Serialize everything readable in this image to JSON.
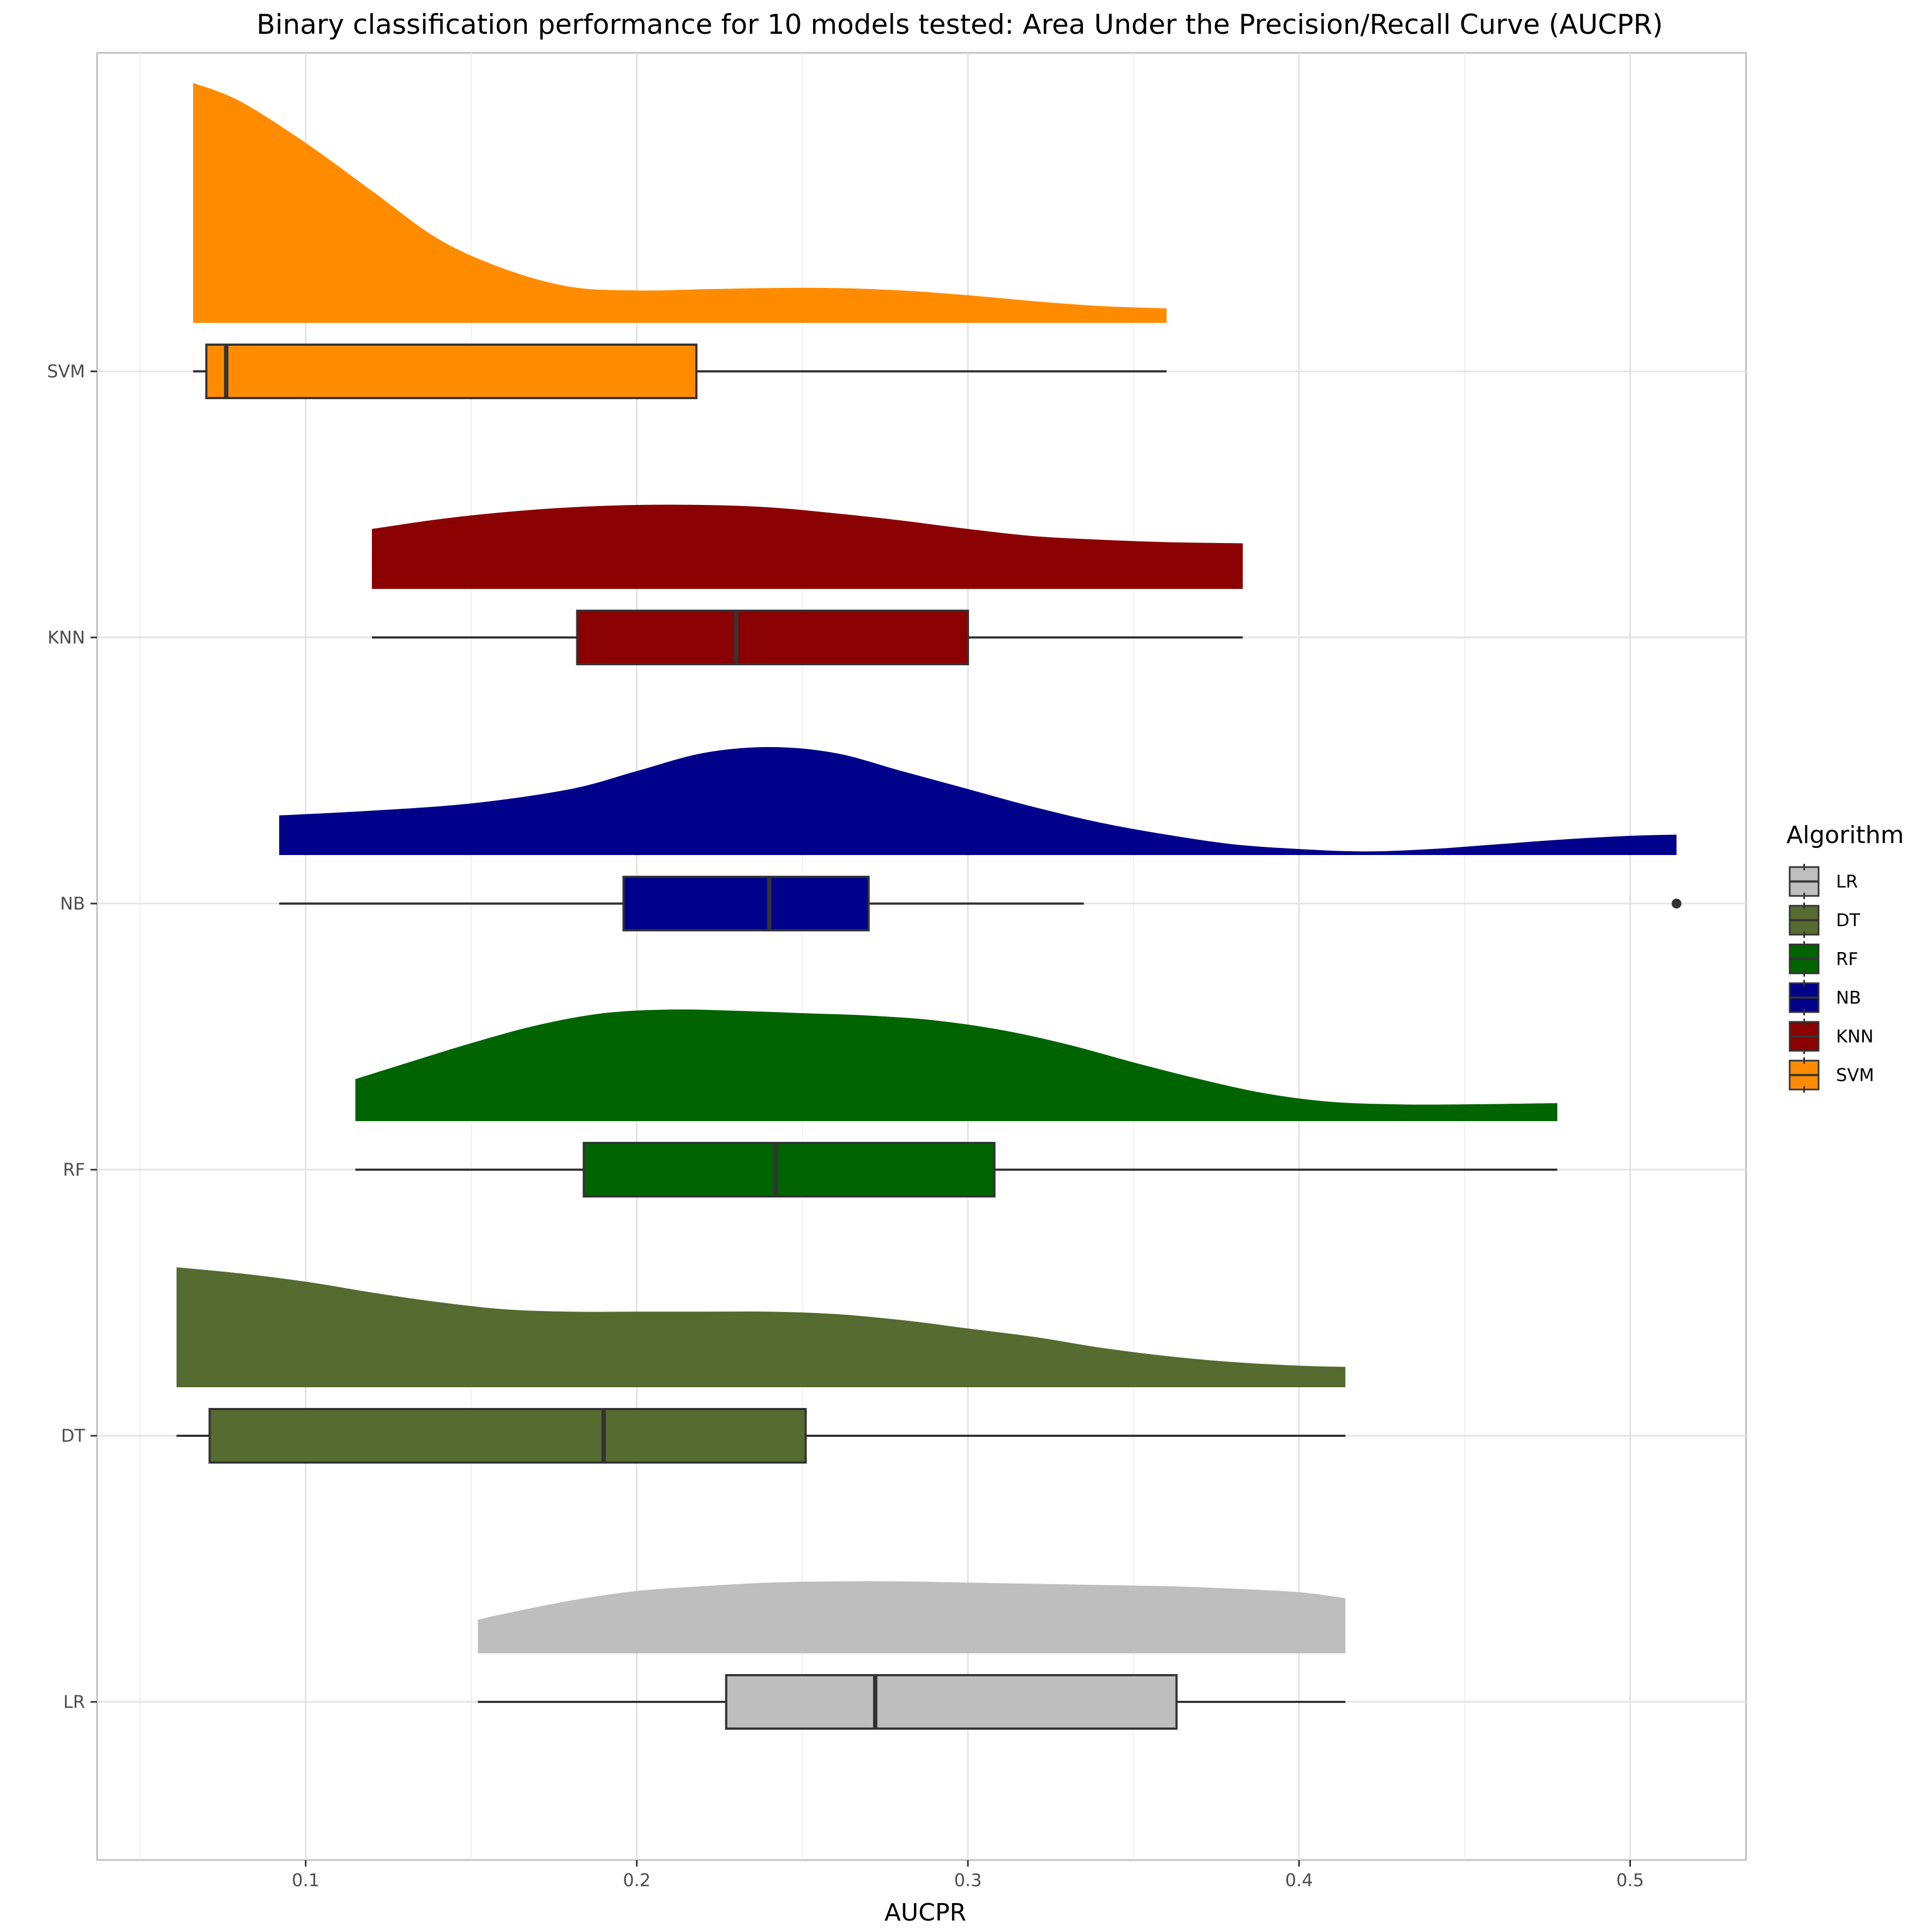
{
  "chart_data": {
    "type": "raincloud",
    "title": "Binary classification performance for 10 models tested: Area Under the Precision/Recall Curve (AUCPR)",
    "xlabel": "AUCPR",
    "ylabel": "",
    "xlim": [
      0.037,
      0.535
    ],
    "x_ticks": [
      "0.1",
      "0.2",
      "0.3",
      "0.4",
      "0.5"
    ],
    "x_tick_values": [
      0.1,
      0.2,
      0.3,
      0.4,
      0.5
    ],
    "grid": true,
    "legend": {
      "title": "Algorithm",
      "position": "right"
    },
    "series": [
      {
        "name": "LR",
        "color": "#bebebe",
        "box": {
          "min": 0.152,
          "q1": 0.227,
          "median": 0.272,
          "q3": 0.363,
          "max": 0.414
        },
        "outliers": [],
        "density": [
          [
            0.152,
            0.28
          ],
          [
            0.16,
            0.33
          ],
          [
            0.18,
            0.44
          ],
          [
            0.2,
            0.52
          ],
          [
            0.22,
            0.56
          ],
          [
            0.24,
            0.59
          ],
          [
            0.26,
            0.6
          ],
          [
            0.28,
            0.6
          ],
          [
            0.3,
            0.59
          ],
          [
            0.32,
            0.58
          ],
          [
            0.34,
            0.57
          ],
          [
            0.36,
            0.56
          ],
          [
            0.38,
            0.54
          ],
          [
            0.4,
            0.51
          ],
          [
            0.414,
            0.46
          ]
        ]
      },
      {
        "name": "DT",
        "color": "#556b2f",
        "box": {
          "min": 0.061,
          "q1": 0.071,
          "median": 0.19,
          "q3": 0.251,
          "max": 0.414
        },
        "outliers": [],
        "density": [
          [
            0.061,
            1.0
          ],
          [
            0.08,
            0.95
          ],
          [
            0.1,
            0.88
          ],
          [
            0.12,
            0.79
          ],
          [
            0.14,
            0.71
          ],
          [
            0.16,
            0.65
          ],
          [
            0.18,
            0.63
          ],
          [
            0.2,
            0.63
          ],
          [
            0.22,
            0.63
          ],
          [
            0.24,
            0.63
          ],
          [
            0.26,
            0.61
          ],
          [
            0.28,
            0.56
          ],
          [
            0.3,
            0.49
          ],
          [
            0.32,
            0.42
          ],
          [
            0.34,
            0.33
          ],
          [
            0.36,
            0.26
          ],
          [
            0.38,
            0.21
          ],
          [
            0.4,
            0.18
          ],
          [
            0.414,
            0.17
          ]
        ]
      },
      {
        "name": "RF",
        "color": "#006400",
        "box": {
          "min": 0.115,
          "q1": 0.184,
          "median": 0.242,
          "q3": 0.308,
          "max": 0.478
        },
        "outliers": [],
        "density": [
          [
            0.115,
            0.35
          ],
          [
            0.13,
            0.48
          ],
          [
            0.15,
            0.65
          ],
          [
            0.17,
            0.8
          ],
          [
            0.19,
            0.9
          ],
          [
            0.21,
            0.93
          ],
          [
            0.23,
            0.92
          ],
          [
            0.25,
            0.9
          ],
          [
            0.27,
            0.88
          ],
          [
            0.29,
            0.84
          ],
          [
            0.31,
            0.76
          ],
          [
            0.33,
            0.64
          ],
          [
            0.35,
            0.49
          ],
          [
            0.37,
            0.35
          ],
          [
            0.39,
            0.23
          ],
          [
            0.41,
            0.16
          ],
          [
            0.43,
            0.14
          ],
          [
            0.45,
            0.14
          ],
          [
            0.478,
            0.15
          ]
        ]
      },
      {
        "name": "NB",
        "color": "#00008b",
        "box": {
          "min": 0.092,
          "q1": 0.196,
          "median": 0.24,
          "q3": 0.27,
          "max": 0.335
        },
        "outliers": [
          0.514
        ],
        "density": [
          [
            0.092,
            0.33
          ],
          [
            0.12,
            0.37
          ],
          [
            0.15,
            0.43
          ],
          [
            0.18,
            0.55
          ],
          [
            0.2,
            0.7
          ],
          [
            0.22,
            0.85
          ],
          [
            0.24,
            0.9
          ],
          [
            0.26,
            0.85
          ],
          [
            0.28,
            0.7
          ],
          [
            0.3,
            0.55
          ],
          [
            0.32,
            0.4
          ],
          [
            0.34,
            0.27
          ],
          [
            0.36,
            0.17
          ],
          [
            0.38,
            0.09
          ],
          [
            0.4,
            0.05
          ],
          [
            0.42,
            0.03
          ],
          [
            0.44,
            0.05
          ],
          [
            0.46,
            0.09
          ],
          [
            0.48,
            0.13
          ],
          [
            0.5,
            0.16
          ],
          [
            0.514,
            0.17
          ]
        ]
      },
      {
        "name": "KNN",
        "color": "#8b0000",
        "box": {
          "min": 0.12,
          "q1": 0.182,
          "median": 0.23,
          "q3": 0.3,
          "max": 0.383
        },
        "outliers": [],
        "density": [
          [
            0.12,
            0.5
          ],
          [
            0.14,
            0.58
          ],
          [
            0.16,
            0.64
          ],
          [
            0.18,
            0.68
          ],
          [
            0.2,
            0.7
          ],
          [
            0.22,
            0.7
          ],
          [
            0.24,
            0.68
          ],
          [
            0.26,
            0.63
          ],
          [
            0.28,
            0.57
          ],
          [
            0.3,
            0.5
          ],
          [
            0.32,
            0.44
          ],
          [
            0.34,
            0.41
          ],
          [
            0.36,
            0.39
          ],
          [
            0.383,
            0.38
          ]
        ]
      },
      {
        "name": "SVM",
        "color": "#ff8c00",
        "box": {
          "min": 0.066,
          "q1": 0.07,
          "median": 0.076,
          "q3": 0.218,
          "max": 0.36
        },
        "outliers": [],
        "density": [
          [
            0.066,
            2.0
          ],
          [
            0.08,
            1.85
          ],
          [
            0.1,
            1.5
          ],
          [
            0.12,
            1.1
          ],
          [
            0.14,
            0.7
          ],
          [
            0.16,
            0.45
          ],
          [
            0.18,
            0.3
          ],
          [
            0.2,
            0.27
          ],
          [
            0.22,
            0.28
          ],
          [
            0.24,
            0.29
          ],
          [
            0.26,
            0.29
          ],
          [
            0.28,
            0.27
          ],
          [
            0.3,
            0.23
          ],
          [
            0.32,
            0.18
          ],
          [
            0.34,
            0.14
          ],
          [
            0.36,
            0.12
          ]
        ]
      }
    ]
  }
}
